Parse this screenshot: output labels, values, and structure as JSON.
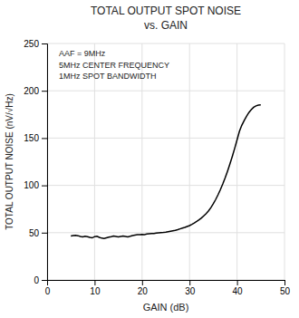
{
  "chart_data": {
    "type": "line",
    "title": "TOTAL OUTPUT SPOT NOISE",
    "subtitle": "vs. GAIN",
    "x_label": "GAIN (dB)",
    "y_label": "TOTAL OUTPUT NOISE (nV/√Hz)",
    "annotation": [
      "AAF = 9MHz",
      "5MHz CENTER FREQUENCY",
      "1MHz SPOT BANDWIDTH"
    ],
    "color": "#000000",
    "grid": true,
    "xlim": [
      0,
      50
    ],
    "ylim": [
      0,
      250
    ],
    "xticks": [
      0,
      10,
      20,
      30,
      40,
      50
    ],
    "yticks": [
      0,
      50,
      100,
      150,
      200,
      250
    ],
    "x": [
      5.0,
      5.5,
      6.0,
      6.5,
      7.0,
      7.5,
      8.0,
      8.5,
      9.0,
      9.5,
      10.0,
      10.5,
      11.0,
      11.5,
      12.0,
      12.5,
      13.0,
      13.5,
      14.0,
      14.5,
      15.0,
      15.5,
      16.0,
      16.5,
      17.0,
      17.5,
      18.0,
      18.5,
      19.0,
      19.5,
      20.0,
      20.5,
      21.0,
      21.5,
      22.0,
      22.5,
      23.0,
      23.5,
      24.0,
      24.5,
      25.0,
      25.5,
      26.0,
      26.5,
      27.0,
      27.5,
      28.0,
      28.5,
      29.0,
      29.5,
      30.0,
      30.5,
      31.0,
      31.5,
      32.0,
      32.5,
      33.0,
      33.5,
      34.0,
      34.5,
      35.0,
      35.5,
      36.0,
      36.5,
      37.0,
      37.5,
      38.0,
      38.5,
      39.0,
      39.5,
      40.0,
      40.5,
      41.0,
      41.5,
      42.0,
      42.5,
      43.0,
      43.5,
      44.0,
      44.5,
      45.0
    ],
    "values": [
      46.5,
      47.0,
      47.2,
      46.8,
      46.0,
      45.5,
      46.2,
      45.8,
      45.0,
      44.5,
      45.8,
      46.2,
      45.0,
      44.2,
      43.8,
      44.5,
      45.2,
      45.8,
      46.5,
      46.0,
      45.5,
      46.0,
      46.5,
      46.0,
      45.5,
      46.2,
      47.0,
      47.5,
      47.8,
      48.0,
      48.2,
      48.0,
      48.5,
      48.8,
      49.0,
      49.2,
      49.5,
      49.8,
      50.0,
      50.2,
      50.5,
      51.0,
      51.5,
      52.0,
      52.5,
      53.2,
      54.0,
      54.8,
      55.5,
      56.5,
      57.5,
      58.8,
      60.2,
      61.8,
      63.5,
      65.5,
      67.8,
      70.2,
      73.0,
      76.5,
      80.5,
      85.0,
      90.0,
      95.5,
      101.5,
      108.0,
      115.0,
      122.5,
      130.5,
      139.0,
      148.0,
      157.0,
      163.5,
      168.5,
      173.0,
      177.0,
      180.0,
      182.5,
      184.0,
      184.8,
      185.0
    ]
  }
}
